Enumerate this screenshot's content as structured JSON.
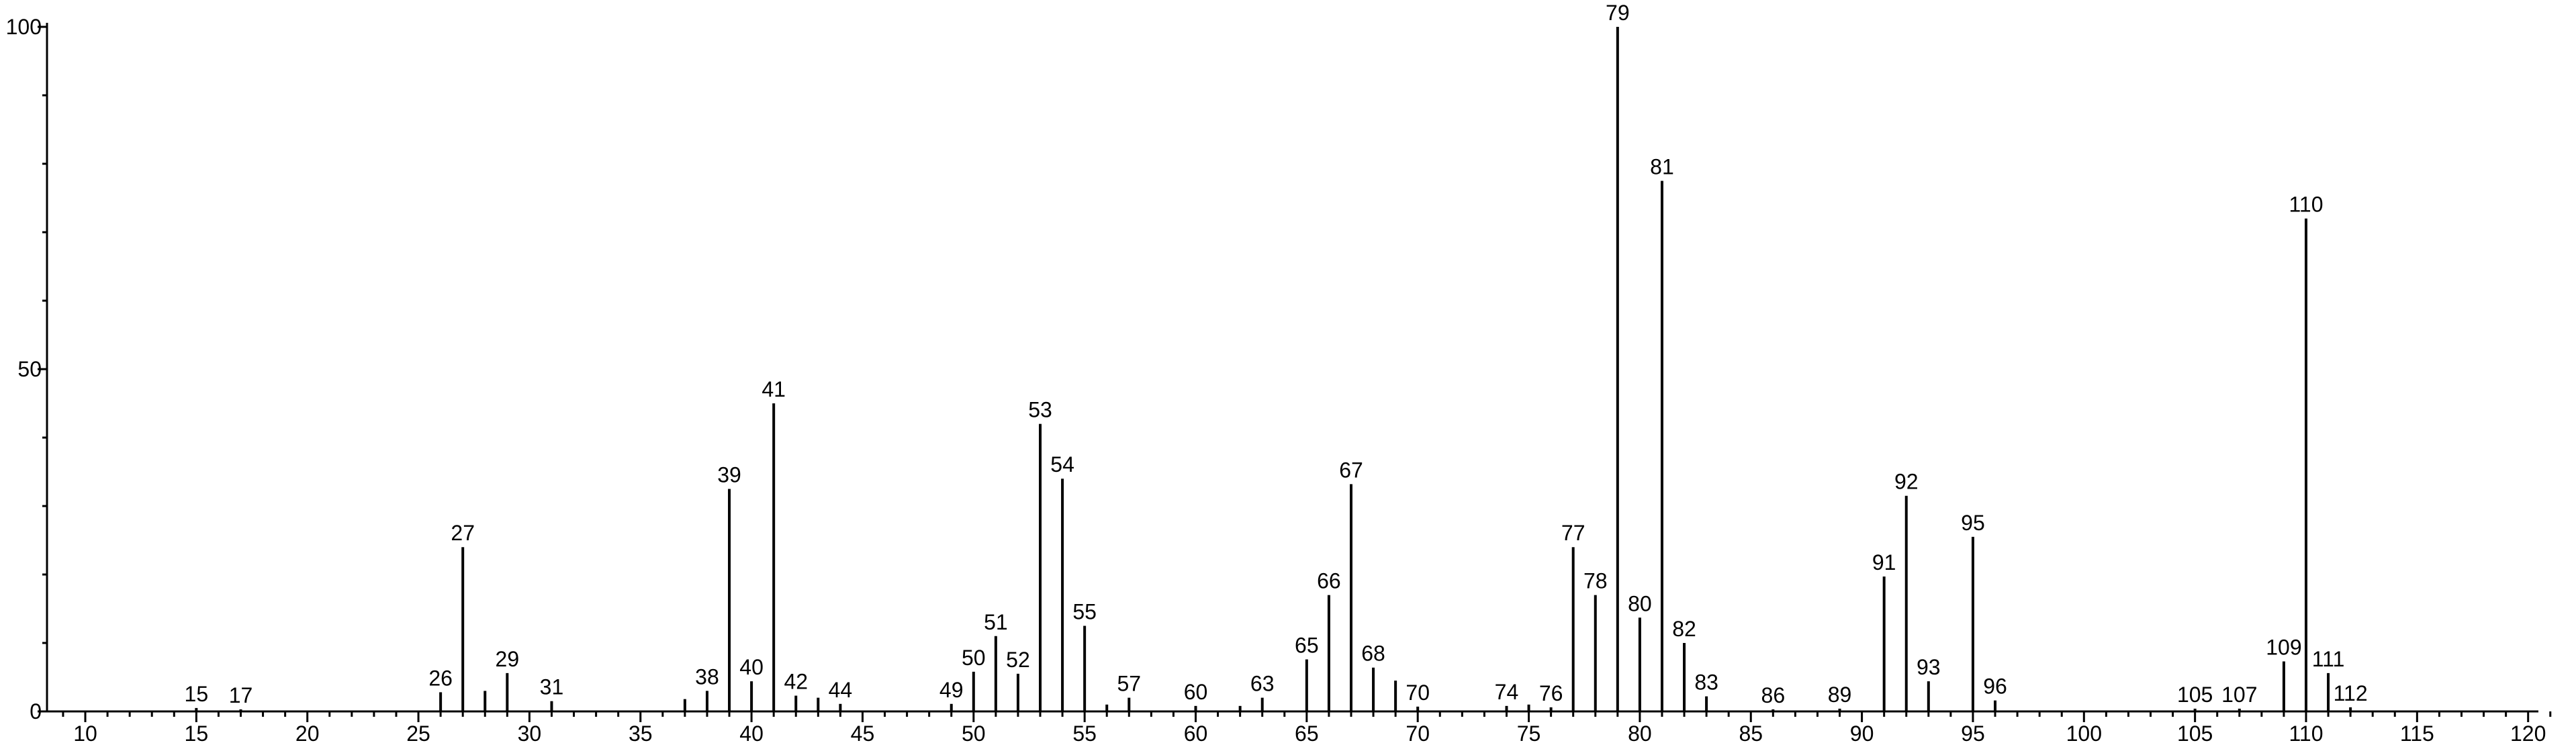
{
  "chart_data": {
    "type": "bar",
    "title": "",
    "xlabel": "",
    "ylabel": "",
    "xlim": [
      8,
      121
    ],
    "ylim": [
      0,
      100
    ],
    "x_major_ticks": [
      10,
      15,
      20,
      25,
      30,
      35,
      40,
      45,
      50,
      55,
      60,
      65,
      70,
      75,
      80,
      85,
      90,
      95,
      100,
      105,
      110,
      115,
      120
    ],
    "y_major_ticks": [
      0,
      50,
      100
    ],
    "grid": false,
    "peaks": [
      {
        "x": 15,
        "y": 0.5,
        "label": "15"
      },
      {
        "x": 17,
        "y": 0.3,
        "label": "17"
      },
      {
        "x": 26,
        "y": 2.8,
        "label": "26"
      },
      {
        "x": 27,
        "y": 24,
        "label": "27"
      },
      {
        "x": 28,
        "y": 3,
        "label": ""
      },
      {
        "x": 29,
        "y": 5.6,
        "label": "29"
      },
      {
        "x": 31,
        "y": 1.5,
        "label": "31"
      },
      {
        "x": 37,
        "y": 1.8,
        "label": ""
      },
      {
        "x": 38,
        "y": 3,
        "label": "38"
      },
      {
        "x": 39,
        "y": 32.5,
        "label": "39"
      },
      {
        "x": 40,
        "y": 4.4,
        "label": "40"
      },
      {
        "x": 41,
        "y": 45,
        "label": "41"
      },
      {
        "x": 42,
        "y": 2.3,
        "label": "42"
      },
      {
        "x": 43,
        "y": 2,
        "label": ""
      },
      {
        "x": 44,
        "y": 1.1,
        "label": "44"
      },
      {
        "x": 49,
        "y": 1.1,
        "label": "49"
      },
      {
        "x": 50,
        "y": 5.8,
        "label": "50"
      },
      {
        "x": 51,
        "y": 11,
        "label": "51"
      },
      {
        "x": 52,
        "y": 5.5,
        "label": "52"
      },
      {
        "x": 53,
        "y": 42,
        "label": "53"
      },
      {
        "x": 54,
        "y": 34,
        "label": "54"
      },
      {
        "x": 55,
        "y": 12.5,
        "label": "55"
      },
      {
        "x": 56,
        "y": 1,
        "label": ""
      },
      {
        "x": 57,
        "y": 2,
        "label": "57"
      },
      {
        "x": 60,
        "y": 0.8,
        "label": "60"
      },
      {
        "x": 62,
        "y": 0.8,
        "label": ""
      },
      {
        "x": 63,
        "y": 2,
        "label": "63"
      },
      {
        "x": 65,
        "y": 7.6,
        "label": "65"
      },
      {
        "x": 66,
        "y": 17,
        "label": "66"
      },
      {
        "x": 67,
        "y": 33.2,
        "label": "67"
      },
      {
        "x": 68,
        "y": 6.4,
        "label": "68"
      },
      {
        "x": 69,
        "y": 4.5,
        "label": ""
      },
      {
        "x": 70,
        "y": 0.7,
        "label": "70"
      },
      {
        "x": 74,
        "y": 0.8,
        "label": "74"
      },
      {
        "x": 75,
        "y": 1,
        "label": ""
      },
      {
        "x": 76,
        "y": 0.6,
        "label": "76"
      },
      {
        "x": 77,
        "y": 24,
        "label": "77"
      },
      {
        "x": 78,
        "y": 17,
        "label": "78"
      },
      {
        "x": 79,
        "y": 100,
        "label": "79"
      },
      {
        "x": 80,
        "y": 13.7,
        "label": "80"
      },
      {
        "x": 81,
        "y": 77.5,
        "label": "81"
      },
      {
        "x": 82,
        "y": 10,
        "label": "82"
      },
      {
        "x": 83,
        "y": 2.2,
        "label": "83"
      },
      {
        "x": 86,
        "y": 0.3,
        "label": "86"
      },
      {
        "x": 89,
        "y": 0.4,
        "label": "89"
      },
      {
        "x": 91,
        "y": 19.7,
        "label": "91"
      },
      {
        "x": 92,
        "y": 31.5,
        "label": "92"
      },
      {
        "x": 93,
        "y": 4.4,
        "label": "93"
      },
      {
        "x": 95,
        "y": 25.5,
        "label": "95"
      },
      {
        "x": 96,
        "y": 1.6,
        "label": "96"
      },
      {
        "x": 105,
        "y": 0.4,
        "label": "105"
      },
      {
        "x": 107,
        "y": 0.4,
        "label": "107"
      },
      {
        "x": 109,
        "y": 7.3,
        "label": "109"
      },
      {
        "x": 110,
        "y": 72,
        "label": "110"
      },
      {
        "x": 111,
        "y": 5.6,
        "label": "111"
      },
      {
        "x": 112,
        "y": 0.6,
        "label": "112"
      }
    ]
  }
}
